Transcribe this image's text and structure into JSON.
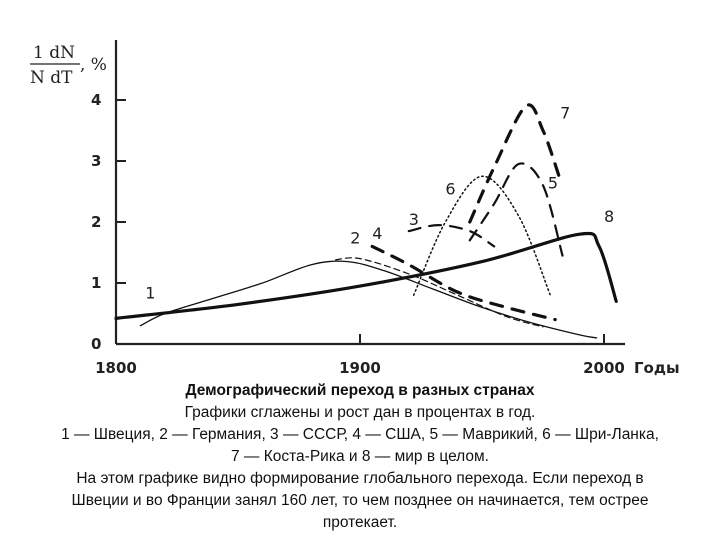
{
  "chart_data": {
    "type": "line",
    "ylabel_numerator": "1 dN",
    "ylabel_denominator": "N dT",
    "ylabel_unit": ", %",
    "xunit": "Годы",
    "xlim": [
      1800,
      2000
    ],
    "ylim": [
      0,
      4
    ],
    "xticks": [
      "1800",
      "1900",
      "2000"
    ],
    "yticks": [
      "0",
      "1",
      "2",
      "3",
      "4"
    ],
    "series": [
      {
        "name": "1",
        "style": "thin",
        "x": [
          1810,
          1820,
          1840,
          1860,
          1880,
          1895,
          1910,
          1930,
          1950,
          1970,
          1990,
          1997
        ],
        "y": [
          0.3,
          0.5,
          0.75,
          1.0,
          1.3,
          1.35,
          1.2,
          0.9,
          0.6,
          0.35,
          0.15,
          0.1
        ]
      },
      {
        "name": "2",
        "style": "thin-dashed",
        "x": [
          1890,
          1900,
          1920,
          1940,
          1960,
          1975
        ],
        "y": [
          1.38,
          1.4,
          1.15,
          0.8,
          0.45,
          0.28
        ]
      },
      {
        "name": "3",
        "style": "dashed",
        "x": [
          1920,
          1932,
          1945,
          1955
        ],
        "y": [
          1.85,
          1.95,
          1.85,
          1.6
        ]
      },
      {
        "name": "4",
        "style": "thick-dashed",
        "x": [
          1905,
          1920,
          1940,
          1960,
          1980
        ],
        "y": [
          1.6,
          1.3,
          0.85,
          0.6,
          0.4
        ]
      },
      {
        "name": "5",
        "style": "dashed",
        "x": [
          1945,
          1955,
          1965,
          1975,
          1983
        ],
        "y": [
          1.7,
          2.3,
          2.95,
          2.6,
          1.45
        ]
      },
      {
        "name": "6",
        "style": "dotted",
        "x": [
          1922,
          1935,
          1950,
          1965,
          1978
        ],
        "y": [
          0.8,
          2.0,
          2.75,
          2.1,
          0.8
        ]
      },
      {
        "name": "7",
        "style": "thick-dashed",
        "x": [
          1945,
          1955,
          1968,
          1975,
          1982
        ],
        "y": [
          2.0,
          2.9,
          3.9,
          3.5,
          2.7
        ]
      },
      {
        "name": "8",
        "style": "thick",
        "x": [
          1800,
          1850,
          1900,
          1950,
          1990,
          1998,
          2005
        ],
        "y": [
          0.42,
          0.65,
          0.95,
          1.35,
          1.8,
          1.6,
          0.7
        ]
      }
    ]
  },
  "caption": {
    "title": "Демографический переход в разных странах",
    "lines": [
      "Графики сглажены и рост дан в процентах в год.",
      "1 — Швеция, 2 — Германия, 3 — СССР, 4 — США, 5 — Маврикий, 6 — Шри-Ланка,",
      "7 — Коста-Рика и 8 — мир в целом.",
      "На этом графике видно формирование глобального перехода. Если переход в",
      "Швеции и во Франции занял 160 лет, то чем позднее он начинается, тем острее",
      "протекает."
    ]
  }
}
